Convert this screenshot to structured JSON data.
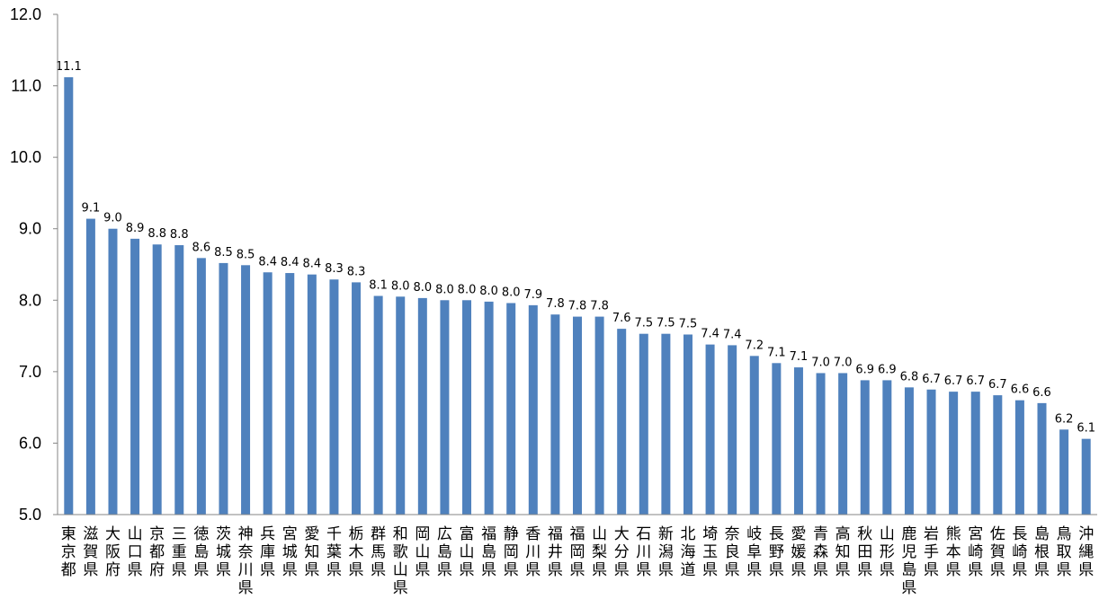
{
  "chart_data": {
    "type": "bar",
    "title": "",
    "xlabel": "",
    "ylabel": "",
    "ylim": [
      5.0,
      12.0
    ],
    "ytick_labels": [
      "5.0",
      "6.0",
      "7.0",
      "8.0",
      "9.0",
      "10.0",
      "11.0",
      "12.0"
    ],
    "grid": false,
    "legend": "none",
    "bar_color": "#4f81bd",
    "categories": [
      "東京都",
      "滋賀県",
      "大阪府",
      "山口県",
      "京都府",
      "三重県",
      "徳島県",
      "茨城県",
      "神奈川県",
      "兵庫県",
      "宮城県",
      "愛知県",
      "千葉県",
      "栃木県",
      "群馬県",
      "和歌山県",
      "岡山県",
      "広島県",
      "富山県",
      "福島県",
      "静岡県",
      "香川県",
      "福井県",
      "福岡県",
      "山梨県",
      "大分県",
      "石川県",
      "新潟県",
      "北海道",
      "埼玉県",
      "奈良県",
      "岐阜県",
      "長野県",
      "愛媛県",
      "青森県",
      "高知県",
      "秋田県",
      "山形県",
      "鹿児島県",
      "岩手県",
      "熊本県",
      "宮崎県",
      "佐賀県",
      "長崎県",
      "島根県",
      "鳥取県",
      "沖縄県"
    ],
    "values": [
      11.12,
      9.14,
      9.0,
      8.86,
      8.78,
      8.77,
      8.59,
      8.52,
      8.49,
      8.39,
      8.38,
      8.36,
      8.29,
      8.25,
      8.06,
      8.05,
      8.03,
      8.0,
      8.0,
      7.98,
      7.96,
      7.93,
      7.8,
      7.77,
      7.77,
      7.6,
      7.53,
      7.53,
      7.52,
      7.38,
      7.37,
      7.22,
      7.12,
      7.06,
      6.98,
      6.98,
      6.88,
      6.88,
      6.78,
      6.75,
      6.72,
      6.72,
      6.67,
      6.6,
      6.56,
      6.19,
      6.06
    ],
    "data_labels": [
      "11.1",
      "9.1",
      "9.0",
      "8.9",
      "8.8",
      "8.8",
      "8.6",
      "8.5",
      "8.5",
      "8.4",
      "8.4",
      "8.4",
      "8.3",
      "8.3",
      "8.1",
      "8.0",
      "8.0",
      "8.0",
      "8.0",
      "8.0",
      "8.0",
      "7.9",
      "7.8",
      "7.8",
      "7.8",
      "7.6",
      "7.5",
      "7.5",
      "7.5",
      "7.4",
      "7.4",
      "7.2",
      "7.1",
      "7.1",
      "7.0",
      "7.0",
      "6.9",
      "6.9",
      "6.8",
      "6.7",
      "6.7",
      "6.7",
      "6.7",
      "6.6",
      "6.6",
      "6.2",
      "6.1"
    ]
  }
}
